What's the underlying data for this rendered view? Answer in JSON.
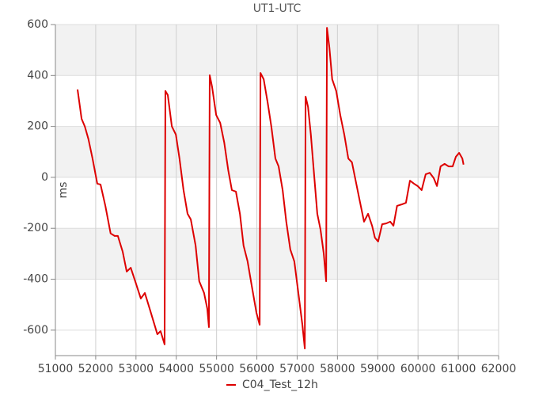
{
  "chart_data": {
    "type": "line",
    "title": "UT1-UTC",
    "y_label": "ms",
    "x": [
      51550,
      51650,
      51730,
      51820,
      51920,
      52040,
      52120,
      52240,
      52370,
      52470,
      52550,
      52670,
      52770,
      52870,
      53000,
      53120,
      53220,
      53340,
      53460,
      53530,
      53610,
      53710,
      53730,
      53790,
      53890,
      53990,
      54080,
      54180,
      54280,
      54360,
      54480,
      54570,
      54690,
      54770,
      54810,
      54830,
      54890,
      54990,
      55090,
      55190,
      55290,
      55380,
      55480,
      55580,
      55670,
      55770,
      55870,
      55990,
      56070,
      56090,
      56170,
      56270,
      56360,
      56460,
      56540,
      56640,
      56730,
      56830,
      56930,
      57030,
      57130,
      57190,
      57210,
      57270,
      57340,
      57420,
      57500,
      57580,
      57660,
      57720,
      57740,
      57800,
      57870,
      57970,
      58070,
      58170,
      58270,
      58360,
      58460,
      58560,
      58660,
      58760,
      58860,
      58930,
      59010,
      59110,
      59210,
      59310,
      59390,
      59480,
      59600,
      59700,
      59800,
      59900,
      59990,
      60090,
      60190,
      60290,
      60390,
      60470,
      60560,
      60660,
      60760,
      60860,
      60940,
      61020,
      61100,
      61130
    ],
    "series": [
      {
        "name": "C04_Test_12h",
        "color": "#dd0000",
        "values": [
          345,
          230,
          200,
          150,
          75,
          -25,
          -28,
          -112,
          -220,
          -230,
          -230,
          -292,
          -370,
          -355,
          -417,
          -476,
          -454,
          -516,
          -579,
          -616,
          -604,
          -656,
          339,
          323,
          200,
          168,
          74,
          -50,
          -143,
          -165,
          -268,
          -408,
          -454,
          -516,
          -588,
          401,
          354,
          245,
          214,
          137,
          28,
          -50,
          -56,
          -143,
          -268,
          -330,
          -423,
          -532,
          -579,
          410,
          385,
          292,
          199,
          74,
          43,
          -50,
          -174,
          -283,
          -330,
          -454,
          -579,
          -672,
          317,
          277,
          168,
          12,
          -143,
          -205,
          -299,
          -408,
          587,
          510,
          385,
          339,
          245,
          168,
          74,
          59,
          -19,
          -97,
          -174,
          -143,
          -190,
          -237,
          -252,
          -184,
          -181,
          -174,
          -190,
          -112,
          -106,
          -100,
          -13,
          -25,
          -34,
          -50,
          12,
          18,
          -3,
          -34,
          43,
          53,
          43,
          43,
          81,
          96,
          74,
          50
        ]
      }
    ],
    "xlim": [
      51000,
      62000
    ],
    "xticks": [
      51000,
      52000,
      53000,
      54000,
      55000,
      56000,
      57000,
      58000,
      59000,
      60000,
      61000,
      62000
    ],
    "ylim": [
      -700,
      600
    ],
    "yticks": [
      -600,
      -400,
      -200,
      0,
      200,
      400,
      600
    ],
    "grid": true,
    "legend": "bottom"
  }
}
